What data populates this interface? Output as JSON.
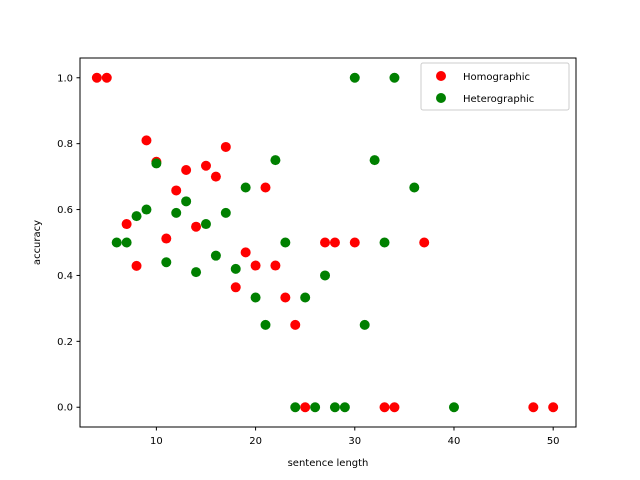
{
  "chart_data": {
    "type": "scatter",
    "xlabel": "sentence length",
    "ylabel": "accuracy",
    "xlim": [
      2.3,
      52.3
    ],
    "ylim": [
      -0.06,
      1.06
    ],
    "xticks": [
      10,
      20,
      30,
      40,
      50
    ],
    "yticks": [
      0.0,
      0.2,
      0.4,
      0.6,
      0.8,
      1.0
    ],
    "xtick_labels": [
      "10",
      "20",
      "30",
      "40",
      "50"
    ],
    "ytick_labels": [
      "0.0",
      "0.2",
      "0.4",
      "0.6",
      "0.8",
      "1.0"
    ],
    "grid": false,
    "legend_position": "top-right",
    "series": [
      {
        "name": "Homographic",
        "color": "#ff0000",
        "points": [
          [
            4,
            1.0
          ],
          [
            5,
            1.0
          ],
          [
            7,
            0.556
          ],
          [
            8,
            0.429
          ],
          [
            9,
            0.81
          ],
          [
            10,
            0.745
          ],
          [
            11,
            0.512
          ],
          [
            12,
            0.658
          ],
          [
            13,
            0.72
          ],
          [
            14,
            0.548
          ],
          [
            15,
            0.733
          ],
          [
            16,
            0.7
          ],
          [
            17,
            0.79
          ],
          [
            18,
            0.364
          ],
          [
            19,
            0.47
          ],
          [
            20,
            0.43
          ],
          [
            21,
            0.667
          ],
          [
            22,
            0.43
          ],
          [
            23,
            0.333
          ],
          [
            24,
            0.25
          ],
          [
            25,
            0.0
          ],
          [
            27,
            0.5
          ],
          [
            28,
            0.5
          ],
          [
            30,
            0.5
          ],
          [
            33,
            0.0
          ],
          [
            34,
            0.0
          ],
          [
            37,
            0.5
          ],
          [
            48,
            0.0
          ],
          [
            50,
            0.0
          ]
        ]
      },
      {
        "name": "Heterographic",
        "color": "#008000",
        "points": [
          [
            6,
            0.5
          ],
          [
            7,
            0.5
          ],
          [
            8,
            0.58
          ],
          [
            9,
            0.6
          ],
          [
            10,
            0.74
          ],
          [
            11,
            0.44
          ],
          [
            12,
            0.59
          ],
          [
            13,
            0.625
          ],
          [
            14,
            0.41
          ],
          [
            15,
            0.556
          ],
          [
            16,
            0.46
          ],
          [
            17,
            0.59
          ],
          [
            18,
            0.42
          ],
          [
            19,
            0.667
          ],
          [
            20,
            0.333
          ],
          [
            21,
            0.25
          ],
          [
            22,
            0.75
          ],
          [
            23,
            0.5
          ],
          [
            24,
            0.0
          ],
          [
            25,
            0.333
          ],
          [
            26,
            0.0
          ],
          [
            27,
            0.4
          ],
          [
            28,
            0.0
          ],
          [
            29,
            0.0
          ],
          [
            30,
            1.0
          ],
          [
            31,
            0.25
          ],
          [
            32,
            0.75
          ],
          [
            33,
            0.5
          ],
          [
            34,
            1.0
          ],
          [
            36,
            0.667
          ],
          [
            40,
            0.0
          ]
        ]
      }
    ]
  }
}
